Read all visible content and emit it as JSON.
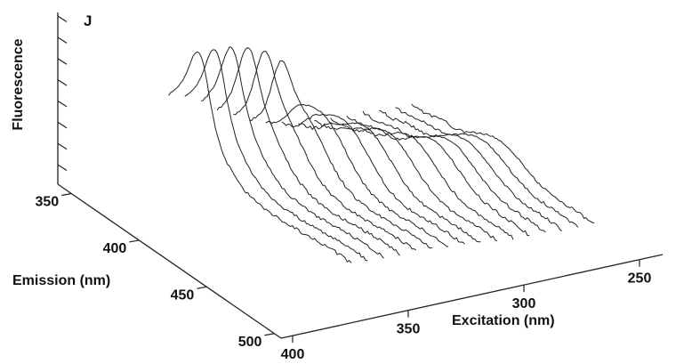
{
  "chart_data": {
    "type": "line",
    "panel_label": "J",
    "view": "3D surface (stacked emission spectra vs excitation)",
    "title": "",
    "zlabel": "Fluorescence",
    "emission_axis": {
      "label": "Emission (nm)",
      "range": [
        340,
        505
      ],
      "ticks": [
        350,
        400,
        450,
        500
      ]
    },
    "excitation_axis": {
      "label": "Excitation (nm)",
      "range": [
        240,
        405
      ],
      "ticks": [
        250,
        300,
        350,
        400
      ]
    },
    "fluorescence_axis": {
      "label": "Fluorescence",
      "range": [
        0,
        1
      ],
      "tick_count": 8
    },
    "grid": false,
    "description_series": "Each trace is an emission scan at a fixed excitation wavelength",
    "series": [
      {
        "excitation_nm": 255,
        "emission_range": [
          345,
          480
        ],
        "peak_emission_nm": 410,
        "relative_intensity": 0.3
      },
      {
        "excitation_nm": 262,
        "emission_range": [
          345,
          480
        ],
        "peak_emission_nm": 410,
        "relative_intensity": 0.33
      },
      {
        "excitation_nm": 269,
        "emission_range": [
          345,
          480
        ],
        "peak_emission_nm": 410,
        "relative_intensity": 0.36
      },
      {
        "excitation_nm": 276,
        "emission_range": [
          345,
          480
        ],
        "peak_emission_nm": 410,
        "relative_intensity": 0.39
      },
      {
        "excitation_nm": 283,
        "emission_range": [
          345,
          480
        ],
        "peak_emission_nm": 410,
        "relative_intensity": 0.42
      },
      {
        "excitation_nm": 290,
        "emission_range": [
          345,
          480
        ],
        "peak_emission_nm": 405,
        "relative_intensity": 0.45
      },
      {
        "excitation_nm": 297,
        "emission_range": [
          345,
          480
        ],
        "peak_emission_nm": 400,
        "relative_intensity": 0.48
      },
      {
        "excitation_nm": 304,
        "emission_range": [
          345,
          480
        ],
        "peak_emission_nm": 395,
        "relative_intensity": 0.52
      },
      {
        "excitation_nm": 311,
        "emission_range": [
          345,
          480
        ],
        "peak_emission_nm": 390,
        "relative_intensity": 0.58
      },
      {
        "excitation_nm": 318,
        "emission_range": [
          345,
          480
        ],
        "peak_emission_nm": 385,
        "relative_intensity": 0.64
      },
      {
        "excitation_nm": 325,
        "emission_range": [
          345,
          480
        ],
        "peak_emission_nm": 380,
        "relative_intensity": 0.7
      },
      {
        "excitation_nm": 332,
        "emission_range": [
          345,
          480
        ],
        "peak_emission_nm": 375,
        "relative_intensity": 0.74
      },
      {
        "excitation_nm": 339,
        "emission_range": [
          345,
          480
        ],
        "peak_emission_nm": 370,
        "relative_intensity": 0.76
      },
      {
        "excitation_nm": 346,
        "emission_range": [
          345,
          480
        ],
        "peak_emission_nm": 365,
        "relative_intensity": 0.78
      },
      {
        "excitation_nm": 353,
        "emission_range": [
          345,
          480
        ],
        "peak_emission_nm": 362,
        "relative_intensity": 0.8
      },
      {
        "excitation_nm": 360,
        "emission_range": [
          345,
          480
        ],
        "peak_emission_nm": 360,
        "relative_intensity": 0.82
      }
    ]
  }
}
